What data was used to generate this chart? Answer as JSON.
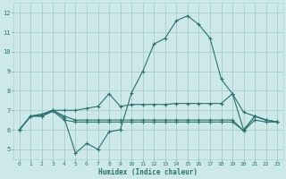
{
  "background_color": "#cce8e8",
  "grid_color": "#aacccc",
  "line_color": "#2d7070",
  "xlabel": "Humidex (Indice chaleur)",
  "xlim": [
    -0.5,
    23.5
  ],
  "ylim": [
    4.5,
    12.5
  ],
  "xticks": [
    0,
    1,
    2,
    3,
    4,
    5,
    6,
    7,
    8,
    9,
    10,
    11,
    12,
    13,
    14,
    15,
    16,
    17,
    18,
    19,
    20,
    21,
    22,
    23
  ],
  "yticks": [
    5,
    6,
    7,
    8,
    9,
    10,
    11,
    12
  ],
  "lines": [
    {
      "x": [
        0,
        1,
        2,
        3,
        4,
        5,
        6,
        7,
        8,
        9,
        10,
        11,
        12,
        13,
        14,
        15,
        16,
        17,
        18,
        19,
        20,
        21,
        22,
        23
      ],
      "y": [
        6.0,
        6.7,
        6.8,
        7.0,
        6.6,
        4.8,
        5.3,
        5.0,
        5.9,
        6.0,
        7.9,
        9.0,
        10.4,
        10.7,
        11.6,
        11.85,
        11.4,
        10.7,
        8.6,
        7.85,
        6.0,
        6.7,
        6.5,
        6.4
      ]
    },
    {
      "x": [
        0,
        1,
        2,
        3,
        4,
        5,
        6,
        7,
        8,
        9,
        10,
        11,
        12,
        13,
        14,
        15,
        16,
        17,
        18,
        19,
        20,
        21,
        22,
        23
      ],
      "y": [
        6.0,
        6.7,
        6.8,
        7.0,
        7.0,
        7.0,
        7.1,
        7.2,
        7.85,
        7.2,
        7.3,
        7.3,
        7.3,
        7.3,
        7.35,
        7.35,
        7.35,
        7.35,
        7.35,
        7.85,
        6.9,
        6.7,
        6.5,
        6.4
      ]
    },
    {
      "x": [
        0,
        1,
        2,
        3,
        4,
        5,
        6,
        7,
        8,
        9,
        10,
        11,
        12,
        13,
        14,
        15,
        16,
        17,
        18,
        19,
        20,
        21,
        22,
        23
      ],
      "y": [
        6.0,
        6.7,
        6.7,
        7.0,
        6.7,
        6.5,
        6.5,
        6.5,
        6.5,
        6.5,
        6.5,
        6.5,
        6.5,
        6.5,
        6.5,
        6.5,
        6.5,
        6.5,
        6.5,
        6.5,
        5.95,
        6.7,
        6.5,
        6.4
      ]
    },
    {
      "x": [
        0,
        1,
        2,
        3,
        4,
        5,
        6,
        7,
        8,
        9,
        10,
        11,
        12,
        13,
        14,
        15,
        16,
        17,
        18,
        19,
        20,
        21,
        22,
        23
      ],
      "y": [
        6.0,
        6.7,
        6.7,
        6.95,
        6.5,
        6.4,
        6.4,
        6.4,
        6.4,
        6.4,
        6.4,
        6.4,
        6.4,
        6.4,
        6.4,
        6.4,
        6.4,
        6.4,
        6.4,
        6.4,
        5.95,
        6.5,
        6.4,
        6.4
      ]
    }
  ]
}
